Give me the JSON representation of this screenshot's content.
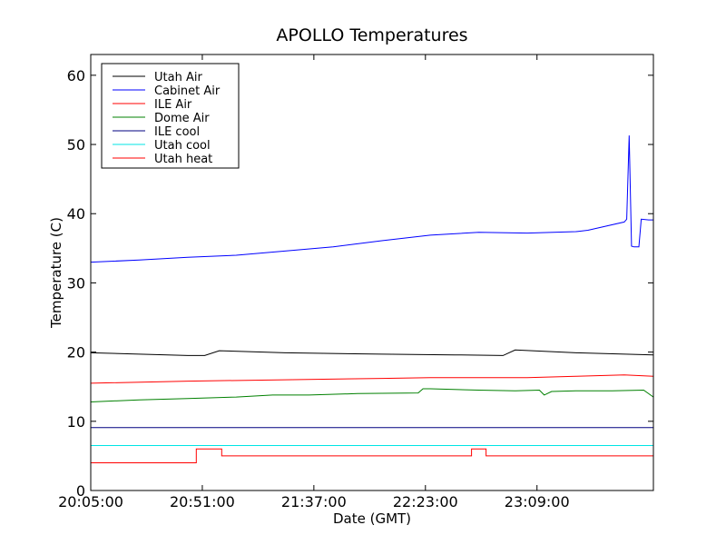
{
  "chart_data": {
    "type": "line",
    "title": "APOLLO Temperatures",
    "xlabel": "Date (GMT)",
    "ylabel": "Temperature (C)",
    "xlim": [
      0,
      232
    ],
    "ylim": [
      0,
      63
    ],
    "x_ticks": [
      {
        "value": 0,
        "label": "20:05:00"
      },
      {
        "value": 46,
        "label": "20:51:00"
      },
      {
        "value": 92,
        "label": "21:37:00"
      },
      {
        "value": 138,
        "label": "22:23:00"
      },
      {
        "value": 184,
        "label": "23:09:00"
      }
    ],
    "y_ticks": [
      0,
      10,
      20,
      30,
      40,
      50,
      60
    ],
    "grid": false,
    "legend_position": "top-left",
    "series": [
      {
        "name": "Utah Air",
        "color": "#000000",
        "x": [
          0,
          20,
          40,
          47,
          53,
          80,
          120,
          150,
          170,
          175,
          200,
          232
        ],
        "values": [
          19.9,
          19.7,
          19.5,
          19.5,
          20.2,
          19.9,
          19.7,
          19.6,
          19.5,
          20.3,
          19.9,
          19.6
        ]
      },
      {
        "name": "Cabinet Air",
        "color": "#0000ff",
        "x": [
          0,
          20,
          40,
          60,
          80,
          100,
          120,
          140,
          160,
          180,
          200,
          205,
          220,
          221,
          222,
          223,
          224,
          226,
          227,
          230,
          232
        ],
        "values": [
          33.0,
          33.3,
          33.7,
          34.0,
          34.6,
          35.2,
          36.1,
          36.9,
          37.3,
          37.2,
          37.4,
          37.6,
          38.8,
          39.2,
          51.3,
          35.3,
          35.2,
          35.2,
          39.2,
          39.1,
          39.1
        ],
        "step": false
      },
      {
        "name": "ILE Air",
        "color": "#ff0000",
        "x": [
          0,
          40,
          80,
          120,
          140,
          160,
          180,
          200,
          220,
          232
        ],
        "values": [
          15.5,
          15.8,
          16.0,
          16.2,
          16.3,
          16.3,
          16.3,
          16.5,
          16.7,
          16.5
        ]
      },
      {
        "name": "Dome Air",
        "color": "#008000",
        "x": [
          0,
          20,
          40,
          60,
          75,
          90,
          110,
          135,
          137,
          140,
          160,
          175,
          185,
          187,
          190,
          200,
          215,
          228,
          232
        ],
        "values": [
          12.8,
          13.1,
          13.3,
          13.5,
          13.8,
          13.8,
          14.0,
          14.1,
          14.7,
          14.7,
          14.5,
          14.4,
          14.5,
          13.8,
          14.3,
          14.4,
          14.4,
          14.5,
          13.5
        ]
      },
      {
        "name": "ILE cool",
        "color": "#000080",
        "x": [
          0,
          232
        ],
        "values": [
          9.1,
          9.1
        ]
      },
      {
        "name": "Utah cool",
        "color": "#00e5e5",
        "x": [
          0,
          232
        ],
        "values": [
          6.5,
          6.5
        ]
      },
      {
        "name": "Utah heat",
        "color": "#ff0000",
        "step": true,
        "x": [
          0,
          43.5,
          43.5,
          54,
          54,
          157,
          157,
          163,
          163,
          232
        ],
        "values": [
          4.0,
          4.0,
          6.0,
          6.0,
          5.0,
          5.0,
          6.0,
          6.0,
          5.0,
          5.0
        ]
      }
    ]
  }
}
